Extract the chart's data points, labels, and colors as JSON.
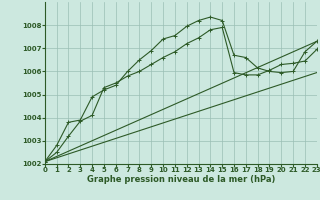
{
  "background_color": "#cce8df",
  "grid_color": "#9abfb5",
  "line_color": "#2d5a27",
  "title": "Graphe pression niveau de la mer (hPa)",
  "xlim": [
    0,
    23
  ],
  "ylim": [
    1002,
    1009
  ],
  "yticks": [
    1002,
    1003,
    1004,
    1005,
    1006,
    1007,
    1008
  ],
  "xticks": [
    0,
    1,
    2,
    3,
    4,
    5,
    6,
    7,
    8,
    9,
    10,
    11,
    12,
    13,
    14,
    15,
    16,
    17,
    18,
    19,
    20,
    21,
    22,
    23
  ],
  "series_upper_x": [
    0,
    1,
    2,
    3,
    4,
    5,
    6,
    7,
    8,
    9,
    10,
    11,
    12,
    13,
    14,
    15,
    16,
    17,
    18,
    19,
    20,
    21,
    22,
    23
  ],
  "series_upper_y": [
    1002.1,
    1002.8,
    1003.8,
    1003.9,
    1004.9,
    1005.2,
    1005.4,
    1006.0,
    1006.5,
    1006.9,
    1007.4,
    1007.55,
    1007.95,
    1008.2,
    1008.35,
    1008.2,
    1006.7,
    1006.6,
    1006.15,
    1006.0,
    1005.95,
    1006.0,
    1006.85,
    1007.3
  ],
  "series_lower_x": [
    0,
    1,
    2,
    3,
    4,
    5,
    6,
    7,
    8,
    9,
    10,
    11,
    12,
    13,
    14,
    15,
    16,
    17,
    18,
    19,
    20,
    21,
    22,
    23
  ],
  "series_lower_y": [
    1002.1,
    1002.5,
    1003.2,
    1003.85,
    1004.1,
    1005.3,
    1005.5,
    1005.8,
    1006.0,
    1006.3,
    1006.6,
    1006.85,
    1007.2,
    1007.45,
    1007.8,
    1007.9,
    1005.95,
    1005.85,
    1005.85,
    1006.05,
    1006.3,
    1006.35,
    1006.45,
    1006.95
  ],
  "line1_x": [
    0,
    23
  ],
  "line1_y": [
    1002.1,
    1005.95
  ],
  "line2_x": [
    0,
    23
  ],
  "line2_y": [
    1002.1,
    1007.3
  ]
}
